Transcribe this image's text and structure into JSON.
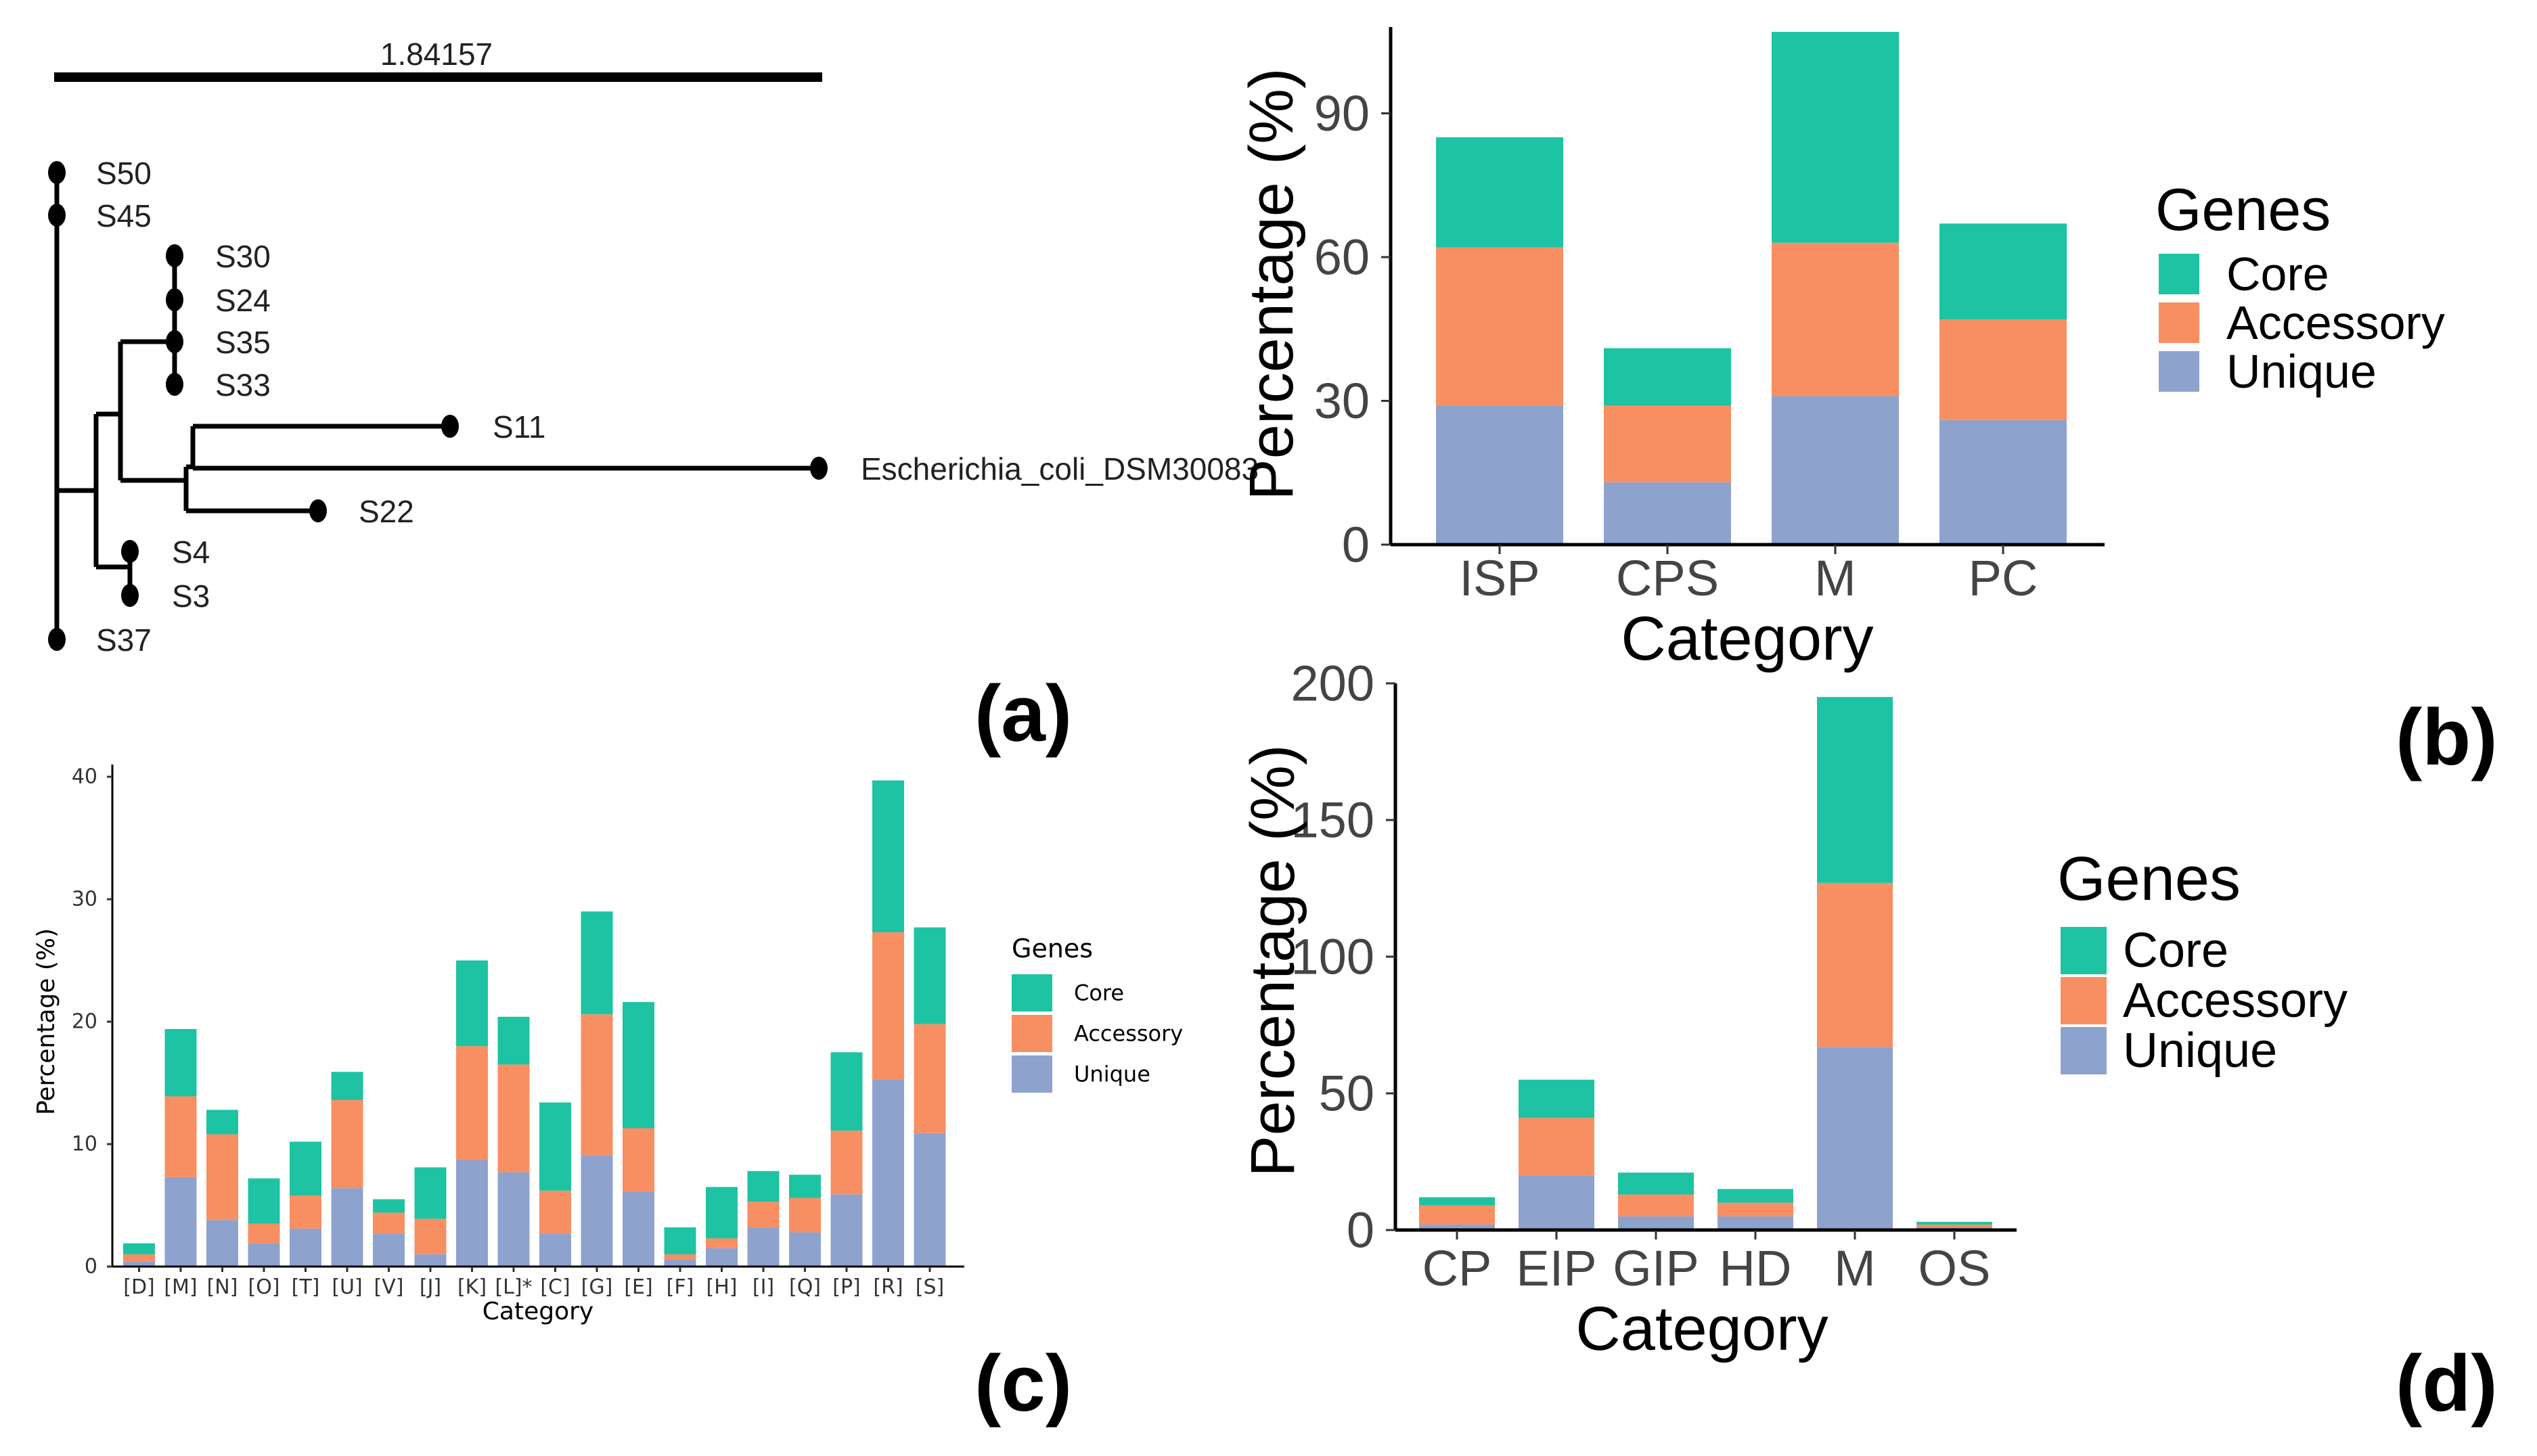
{
  "colors": {
    "core": "#1dc3a3",
    "accessory": "#f88f62",
    "unique": "#8ea2ce"
  },
  "panel_labels": {
    "a": "(a)",
    "b": "(b)",
    "c": "(c)",
    "d": "(d)"
  },
  "tree": {
    "scale_label": "1.84157",
    "leaves": [
      "S50",
      "S45",
      "S30",
      "S24",
      "S35",
      "S33",
      "S11",
      "Escherichia_coli_DSM30083",
      "S22",
      "S4",
      "S3",
      "S37"
    ]
  },
  "chart_data": [
    {
      "id": "b",
      "type": "bar",
      "stacked": true,
      "categories": [
        "ISP",
        "CPS",
        "M",
        "PC"
      ],
      "series": [
        {
          "name": "Unique",
          "values": [
            29,
            13,
            31,
            26
          ]
        },
        {
          "name": "Accessory",
          "values": [
            33,
            16,
            32,
            21
          ]
        },
        {
          "name": "Core",
          "values": [
            23,
            12,
            44,
            20
          ]
        }
      ],
      "xlabel": "Category",
      "ylabel": "Percentage (%)",
      "ylim": [
        0,
        108
      ],
      "yticks": [
        "0",
        "30",
        "60",
        "90"
      ],
      "legend_title": "Genes",
      "legend_items": [
        "Core",
        "Accessory",
        "Unique"
      ],
      "legend_position": "right",
      "grid": false
    },
    {
      "id": "c",
      "type": "bar",
      "stacked": true,
      "categories": [
        "[D]",
        "[M]",
        "[N]",
        "[O]",
        "[T]",
        "[U]",
        "[V]",
        "[J]",
        "[K]",
        "[L]*",
        "[C]",
        "[G]",
        "[E]",
        "[F]",
        "[H]",
        "[I]",
        "[Q]",
        "[P]",
        "[R]",
        "[S]"
      ],
      "series": [
        {
          "name": "Unique",
          "values": [
            0.4,
            7.3,
            3.8,
            1.9,
            3.1,
            6.4,
            2.7,
            1.0,
            8.7,
            7.7,
            2.7,
            9.1,
            6.1,
            0.6,
            1.5,
            3.2,
            2.8,
            5.9,
            15.3,
            10.9
          ]
        },
        {
          "name": "Accessory",
          "values": [
            0.6,
            6.6,
            7.0,
            1.6,
            2.7,
            7.2,
            1.7,
            2.9,
            9.3,
            8.8,
            3.5,
            11.5,
            5.2,
            0.4,
            0.8,
            2.1,
            2.8,
            5.2,
            12.0,
            8.9
          ]
        },
        {
          "name": "Core",
          "values": [
            0.9,
            5.5,
            2.0,
            3.7,
            4.4,
            2.3,
            1.1,
            4.2,
            7.0,
            3.9,
            7.2,
            8.4,
            10.3,
            2.2,
            4.2,
            2.5,
            1.9,
            6.4,
            12.4,
            7.9
          ]
        }
      ],
      "xlabel": "Category",
      "ylabel": "Percentage (%)",
      "ylim": [
        0,
        41
      ],
      "yticks": [
        "0",
        "10",
        "20",
        "30",
        "40"
      ],
      "legend_title": "Genes",
      "legend_items": [
        "Core",
        "Accessory",
        "Unique"
      ],
      "legend_position": "right",
      "grid": false
    },
    {
      "id": "d",
      "type": "bar",
      "stacked": true,
      "categories": [
        "CP",
        "EIP",
        "GIP",
        "HD",
        "M",
        "OS"
      ],
      "series": [
        {
          "name": "Unique",
          "values": [
            2,
            20,
            5,
            5,
            67,
            1
          ]
        },
        {
          "name": "Accessory",
          "values": [
            7,
            21,
            8,
            5,
            60,
            1
          ]
        },
        {
          "name": "Core",
          "values": [
            3,
            14,
            8,
            5,
            68,
            1
          ]
        }
      ],
      "xlabel": "Category",
      "ylabel": "Percentage (%)",
      "ylim": [
        0,
        200
      ],
      "yticks": [
        "0",
        "50",
        "100",
        "150",
        "200"
      ],
      "legend_title": "Genes",
      "legend_items": [
        "Core",
        "Accessory",
        "Unique"
      ],
      "legend_position": "right",
      "grid": false
    }
  ]
}
